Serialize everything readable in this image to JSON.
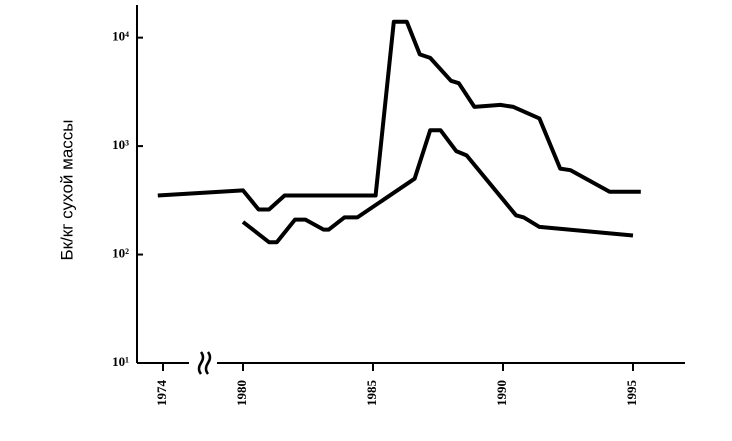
{
  "chart_data": {
    "type": "line",
    "ylabel": "Бк/кг сухой массы",
    "log_scale_y": true,
    "ylim": [
      10,
      20000
    ],
    "yticks": [
      {
        "value": 10,
        "label": "10¹"
      },
      {
        "value": 100,
        "label": "10²"
      },
      {
        "value": 1000,
        "label": "10³"
      },
      {
        "value": 10000,
        "label": "10⁴"
      }
    ],
    "xlim": [
      1973,
      1997
    ],
    "x_break": [
      1975,
      1979
    ],
    "xticks": [
      1974,
      1980,
      1985,
      1990,
      1995
    ],
    "series": [
      {
        "color": "#000000",
        "x": [
          1973.8,
          1980.0,
          1980.6,
          1981.0,
          1981.6,
          1985.1,
          1985.8,
          1986.3,
          1986.8,
          1987.2,
          1988.0,
          1988.3,
          1988.9,
          1989.9,
          1990.4,
          1991.4,
          1992.2,
          1992.6,
          1994.1,
          1995.3
        ],
        "values": [
          350,
          390,
          260,
          260,
          350,
          350,
          14000,
          14000,
          7000,
          6500,
          4000,
          3800,
          2300,
          2400,
          2300,
          1800,
          620,
          600,
          380,
          380
        ]
      },
      {
        "color": "#000000",
        "x": [
          1980.0,
          1981.0,
          1981.3,
          1982.0,
          1982.4,
          1983.1,
          1983.3,
          1983.9,
          1984.4,
          1986.6,
          1987.2,
          1987.6,
          1988.2,
          1988.6,
          1990.5,
          1990.8,
          1991.4,
          1995.0
        ],
        "values": [
          200,
          130,
          130,
          210,
          210,
          170,
          170,
          220,
          220,
          500,
          1400,
          1400,
          900,
          820,
          230,
          220,
          180,
          150
        ]
      }
    ]
  }
}
